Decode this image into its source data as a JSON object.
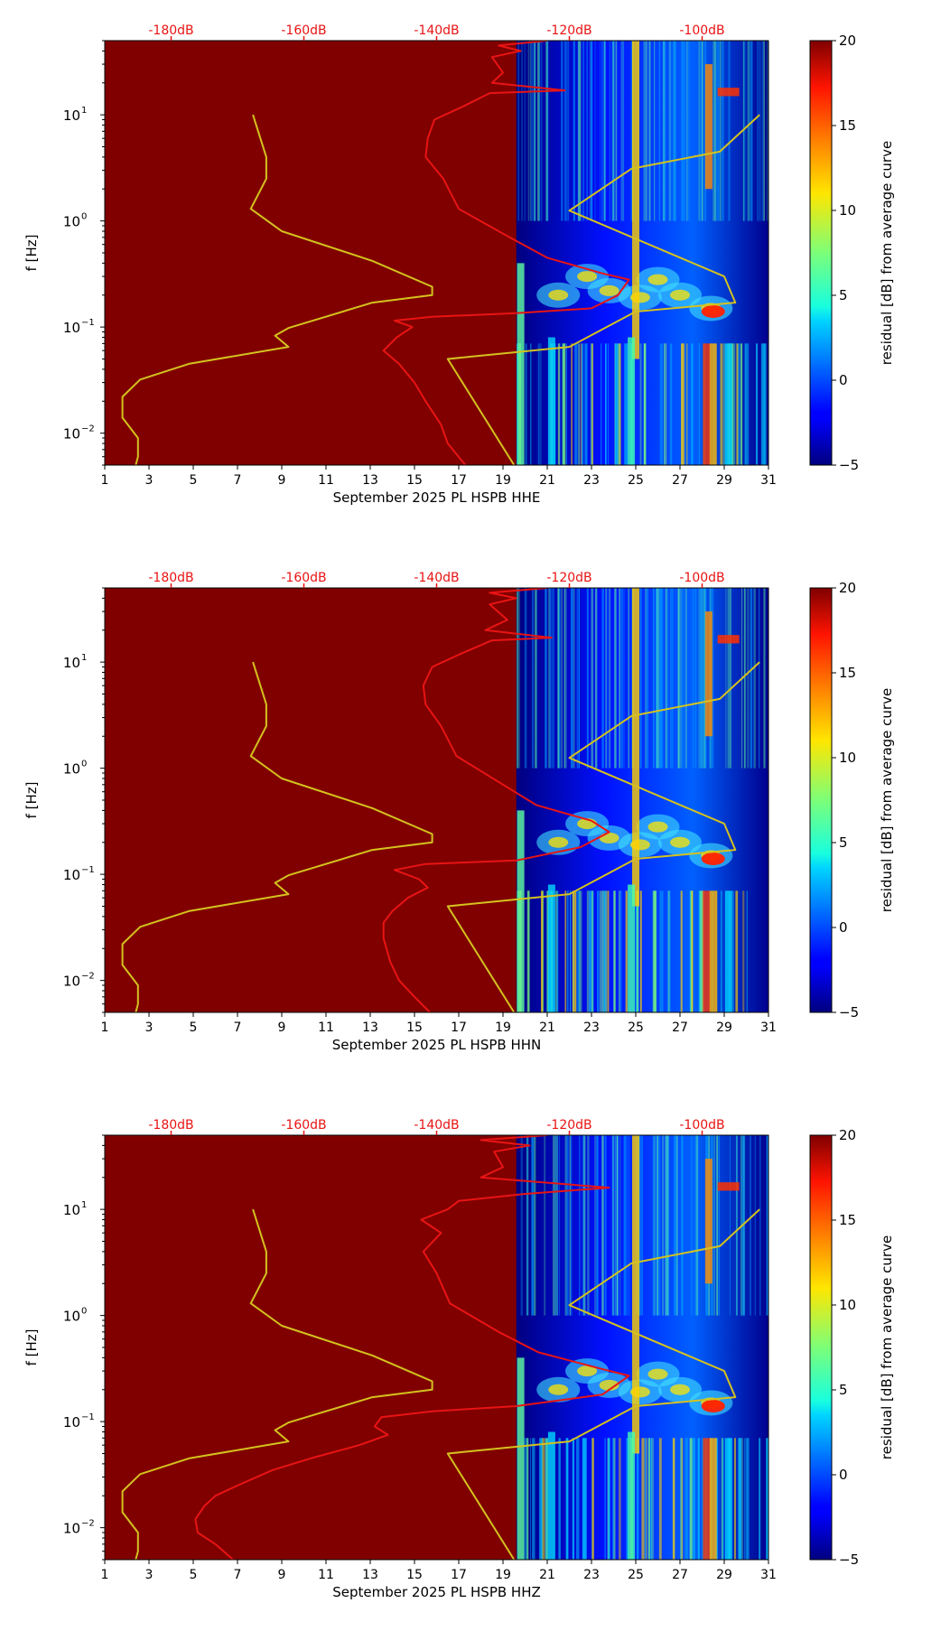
{
  "chart_data": [
    {
      "type": "heatmap",
      "xlabel": "September 2025 PL HSPB  HHE",
      "ylabel": "f [Hz]",
      "colorbar_label": "residual [dB] from average curve",
      "colorbar_ticks": [
        "−5",
        "0",
        "5",
        "10",
        "15",
        "20"
      ],
      "colorbar_range": [
        -5,
        20
      ],
      "xlim": [
        1,
        31
      ],
      "ylim_hz": [
        0.005,
        50
      ],
      "yscale": "log",
      "x_ticks": [
        "1",
        "3",
        "5",
        "7",
        "9",
        "11",
        "13",
        "15",
        "17",
        "19",
        "21",
        "23",
        "25",
        "27",
        "29",
        "31"
      ],
      "y_ticks": [
        {
          "v": 0.01,
          "b": "10",
          "e": "−2"
        },
        {
          "v": 0.1,
          "b": "10",
          "e": "−1"
        },
        {
          "v": 1,
          "b": "10",
          "e": "0"
        },
        {
          "v": 10,
          "b": "10",
          "e": "1"
        }
      ],
      "top_ticks": [
        {
          "x": 4,
          "label": "-180dB"
        },
        {
          "x": 10,
          "label": "-160dB"
        },
        {
          "x": 16,
          "label": "-140dB"
        },
        {
          "x": 22,
          "label": "-120dB"
        },
        {
          "x": 28,
          "label": "-100dB"
        }
      ],
      "data_start_day": 19.6,
      "series": [
        {
          "color": "#d4c21f",
          "points": [
            [
              2.4,
              0.005
            ],
            [
              2.5,
              0.006
            ],
            [
              2.5,
              0.009
            ],
            [
              1.8,
              0.014
            ],
            [
              1.8,
              0.022
            ],
            [
              2.6,
              0.032
            ],
            [
              4.8,
              0.045
            ],
            [
              9.3,
              0.065
            ],
            [
              8.7,
              0.083
            ],
            [
              9.3,
              0.098
            ],
            [
              13.1,
              0.17
            ],
            [
              15.8,
              0.2
            ],
            [
              15.8,
              0.24
            ],
            [
              13.1,
              0.42
            ],
            [
              9.0,
              0.8
            ],
            [
              7.6,
              1.3
            ],
            [
              8.3,
              2.5
            ],
            [
              8.3,
              4.0
            ],
            [
              7.7,
              10
            ]
          ]
        },
        {
          "color": "#d4c21f",
          "points": [
            [
              19.5,
              0.005
            ],
            [
              16.5,
              0.05
            ],
            [
              22.0,
              0.065
            ],
            [
              25.0,
              0.14
            ],
            [
              29.5,
              0.17
            ],
            [
              29.0,
              0.3
            ],
            [
              22.0,
              1.25
            ],
            [
              24.8,
              3.1
            ],
            [
              28.8,
              4.5
            ],
            [
              30.6,
              10
            ]
          ]
        },
        {
          "color": "#e81414",
          "points": [
            [
              17.3,
              0.005
            ],
            [
              16.5,
              0.008
            ],
            [
              16.2,
              0.012
            ],
            [
              15.5,
              0.02
            ],
            [
              15.0,
              0.03
            ],
            [
              14.3,
              0.045
            ],
            [
              13.6,
              0.06
            ],
            [
              14.2,
              0.08
            ],
            [
              14.9,
              0.1
            ],
            [
              14.1,
              0.115
            ],
            [
              15.8,
              0.125
            ],
            [
              19.6,
              0.135
            ],
            [
              23.0,
              0.15
            ],
            [
              24.2,
              0.2
            ],
            [
              24.7,
              0.28
            ],
            [
              23.5,
              0.32
            ],
            [
              21.0,
              0.45
            ],
            [
              19.3,
              0.7
            ],
            [
              17.0,
              1.3
            ],
            [
              16.3,
              2.5
            ],
            [
              15.5,
              4.0
            ],
            [
              15.6,
              6
            ],
            [
              15.9,
              9
            ],
            [
              17.2,
              12
            ],
            [
              18.4,
              16
            ],
            [
              21.8,
              17
            ],
            [
              18.5,
              20
            ],
            [
              19.0,
              25
            ],
            [
              18.5,
              35
            ],
            [
              19.8,
              40
            ],
            [
              18.8,
              45
            ],
            [
              21.0,
              50
            ]
          ]
        }
      ]
    },
    {
      "type": "heatmap",
      "xlabel": "September 2025 PL HSPB  HHN",
      "ylabel": "f [Hz]",
      "colorbar_label": "residual [dB] from average curve",
      "colorbar_ticks": [
        "−5",
        "0",
        "5",
        "10",
        "15",
        "20"
      ],
      "colorbar_range": [
        -5,
        20
      ],
      "xlim": [
        1,
        31
      ],
      "ylim_hz": [
        0.005,
        50
      ],
      "yscale": "log",
      "x_ticks": [
        "1",
        "3",
        "5",
        "7",
        "9",
        "11",
        "13",
        "15",
        "17",
        "19",
        "21",
        "23",
        "25",
        "27",
        "29",
        "31"
      ],
      "y_ticks": [
        {
          "v": 0.01,
          "b": "10",
          "e": "−2"
        },
        {
          "v": 0.1,
          "b": "10",
          "e": "−1"
        },
        {
          "v": 1,
          "b": "10",
          "e": "0"
        },
        {
          "v": 10,
          "b": "10",
          "e": "1"
        }
      ],
      "top_ticks": [
        {
          "x": 4,
          "label": "-180dB"
        },
        {
          "x": 10,
          "label": "-160dB"
        },
        {
          "x": 16,
          "label": "-140dB"
        },
        {
          "x": 22,
          "label": "-120dB"
        },
        {
          "x": 28,
          "label": "-100dB"
        }
      ],
      "data_start_day": 19.6,
      "series": [
        {
          "color": "#d4c21f",
          "points": [
            [
              2.4,
              0.005
            ],
            [
              2.5,
              0.006
            ],
            [
              2.5,
              0.009
            ],
            [
              1.8,
              0.014
            ],
            [
              1.8,
              0.022
            ],
            [
              2.6,
              0.032
            ],
            [
              4.8,
              0.045
            ],
            [
              9.3,
              0.065
            ],
            [
              8.7,
              0.083
            ],
            [
              9.3,
              0.098
            ],
            [
              13.1,
              0.17
            ],
            [
              15.8,
              0.2
            ],
            [
              15.8,
              0.24
            ],
            [
              13.1,
              0.42
            ],
            [
              9.0,
              0.8
            ],
            [
              7.6,
              1.3
            ],
            [
              8.3,
              2.5
            ],
            [
              8.3,
              4.0
            ],
            [
              7.7,
              10
            ]
          ]
        },
        {
          "color": "#d4c21f",
          "points": [
            [
              19.5,
              0.005
            ],
            [
              16.5,
              0.05
            ],
            [
              22.0,
              0.065
            ],
            [
              25.0,
              0.14
            ],
            [
              29.5,
              0.17
            ],
            [
              29.0,
              0.3
            ],
            [
              22.0,
              1.25
            ],
            [
              24.8,
              3.1
            ],
            [
              28.8,
              4.5
            ],
            [
              30.6,
              10
            ]
          ]
        },
        {
          "color": "#e81414",
          "points": [
            [
              15.7,
              0.005
            ],
            [
              15.0,
              0.007
            ],
            [
              14.3,
              0.01
            ],
            [
              13.9,
              0.015
            ],
            [
              13.6,
              0.025
            ],
            [
              13.6,
              0.035
            ],
            [
              14.0,
              0.045
            ],
            [
              14.7,
              0.06
            ],
            [
              15.6,
              0.075
            ],
            [
              15.2,
              0.09
            ],
            [
              14.1,
              0.11
            ],
            [
              15.5,
              0.125
            ],
            [
              19.6,
              0.135
            ],
            [
              22.5,
              0.18
            ],
            [
              23.8,
              0.25
            ],
            [
              23.0,
              0.32
            ],
            [
              20.5,
              0.45
            ],
            [
              19.0,
              0.7
            ],
            [
              16.9,
              1.3
            ],
            [
              16.2,
              2.5
            ],
            [
              15.5,
              4.0
            ],
            [
              15.4,
              6
            ],
            [
              15.8,
              9
            ],
            [
              17.1,
              12
            ],
            [
              18.5,
              16
            ],
            [
              21.2,
              17
            ],
            [
              18.2,
              20
            ],
            [
              19.2,
              25
            ],
            [
              18.4,
              35
            ],
            [
              19.6,
              40
            ],
            [
              18.4,
              45
            ],
            [
              21.0,
              50
            ]
          ]
        }
      ]
    },
    {
      "type": "heatmap",
      "xlabel": "September 2025 PL HSPB  HHZ",
      "ylabel": "f [Hz]",
      "colorbar_label": "residual [dB] from average curve",
      "colorbar_ticks": [
        "−5",
        "0",
        "5",
        "10",
        "15",
        "20"
      ],
      "colorbar_range": [
        -5,
        20
      ],
      "xlim": [
        1,
        31
      ],
      "ylim_hz": [
        0.005,
        50
      ],
      "yscale": "log",
      "x_ticks": [
        "1",
        "3",
        "5",
        "7",
        "9",
        "11",
        "13",
        "15",
        "17",
        "19",
        "21",
        "23",
        "25",
        "27",
        "29",
        "31"
      ],
      "y_ticks": [
        {
          "v": 0.01,
          "b": "10",
          "e": "−2"
        },
        {
          "v": 0.1,
          "b": "10",
          "e": "−1"
        },
        {
          "v": 1,
          "b": "10",
          "e": "0"
        },
        {
          "v": 10,
          "b": "10",
          "e": "1"
        }
      ],
      "top_ticks": [
        {
          "x": 4,
          "label": "-180dB"
        },
        {
          "x": 10,
          "label": "-160dB"
        },
        {
          "x": 16,
          "label": "-140dB"
        },
        {
          "x": 22,
          "label": "-120dB"
        },
        {
          "x": 28,
          "label": "-100dB"
        }
      ],
      "data_start_day": 19.6,
      "series": [
        {
          "color": "#d4c21f",
          "points": [
            [
              2.4,
              0.005
            ],
            [
              2.5,
              0.006
            ],
            [
              2.5,
              0.009
            ],
            [
              1.8,
              0.014
            ],
            [
              1.8,
              0.022
            ],
            [
              2.6,
              0.032
            ],
            [
              4.8,
              0.045
            ],
            [
              9.3,
              0.065
            ],
            [
              8.7,
              0.083
            ],
            [
              9.3,
              0.098
            ],
            [
              13.1,
              0.17
            ],
            [
              15.8,
              0.2
            ],
            [
              15.8,
              0.24
            ],
            [
              13.1,
              0.42
            ],
            [
              9.0,
              0.8
            ],
            [
              7.6,
              1.3
            ],
            [
              8.3,
              2.5
            ],
            [
              8.3,
              4.0
            ],
            [
              7.7,
              10
            ]
          ]
        },
        {
          "color": "#d4c21f",
          "points": [
            [
              19.5,
              0.005
            ],
            [
              16.5,
              0.05
            ],
            [
              22.0,
              0.065
            ],
            [
              25.0,
              0.14
            ],
            [
              29.5,
              0.17
            ],
            [
              29.0,
              0.3
            ],
            [
              22.0,
              1.25
            ],
            [
              24.8,
              3.1
            ],
            [
              28.8,
              4.5
            ],
            [
              30.6,
              10
            ]
          ]
        },
        {
          "color": "#e81414",
          "points": [
            [
              6.8,
              0.005
            ],
            [
              6.0,
              0.007
            ],
            [
              5.2,
              0.009
            ],
            [
              5.1,
              0.012
            ],
            [
              5.5,
              0.016
            ],
            [
              6.0,
              0.02
            ],
            [
              7.0,
              0.025
            ],
            [
              8.6,
              0.035
            ],
            [
              10.3,
              0.045
            ],
            [
              12.5,
              0.06
            ],
            [
              13.8,
              0.075
            ],
            [
              13.2,
              0.09
            ],
            [
              13.5,
              0.11
            ],
            [
              15.8,
              0.125
            ],
            [
              19.6,
              0.14
            ],
            [
              23.5,
              0.18
            ],
            [
              24.7,
              0.27
            ],
            [
              23.3,
              0.32
            ],
            [
              20.6,
              0.45
            ],
            [
              18.8,
              0.7
            ],
            [
              16.6,
              1.3
            ],
            [
              16.0,
              2.5
            ],
            [
              15.4,
              4.0
            ],
            [
              16.2,
              6
            ],
            [
              15.3,
              8
            ],
            [
              16.5,
              10
            ],
            [
              17.0,
              12
            ],
            [
              20.0,
              14
            ],
            [
              23.8,
              16
            ],
            [
              18.0,
              20
            ],
            [
              19.0,
              25
            ],
            [
              18.6,
              35
            ],
            [
              20.2,
              40
            ],
            [
              18.0,
              45
            ],
            [
              21.0,
              50
            ]
          ]
        }
      ]
    }
  ]
}
